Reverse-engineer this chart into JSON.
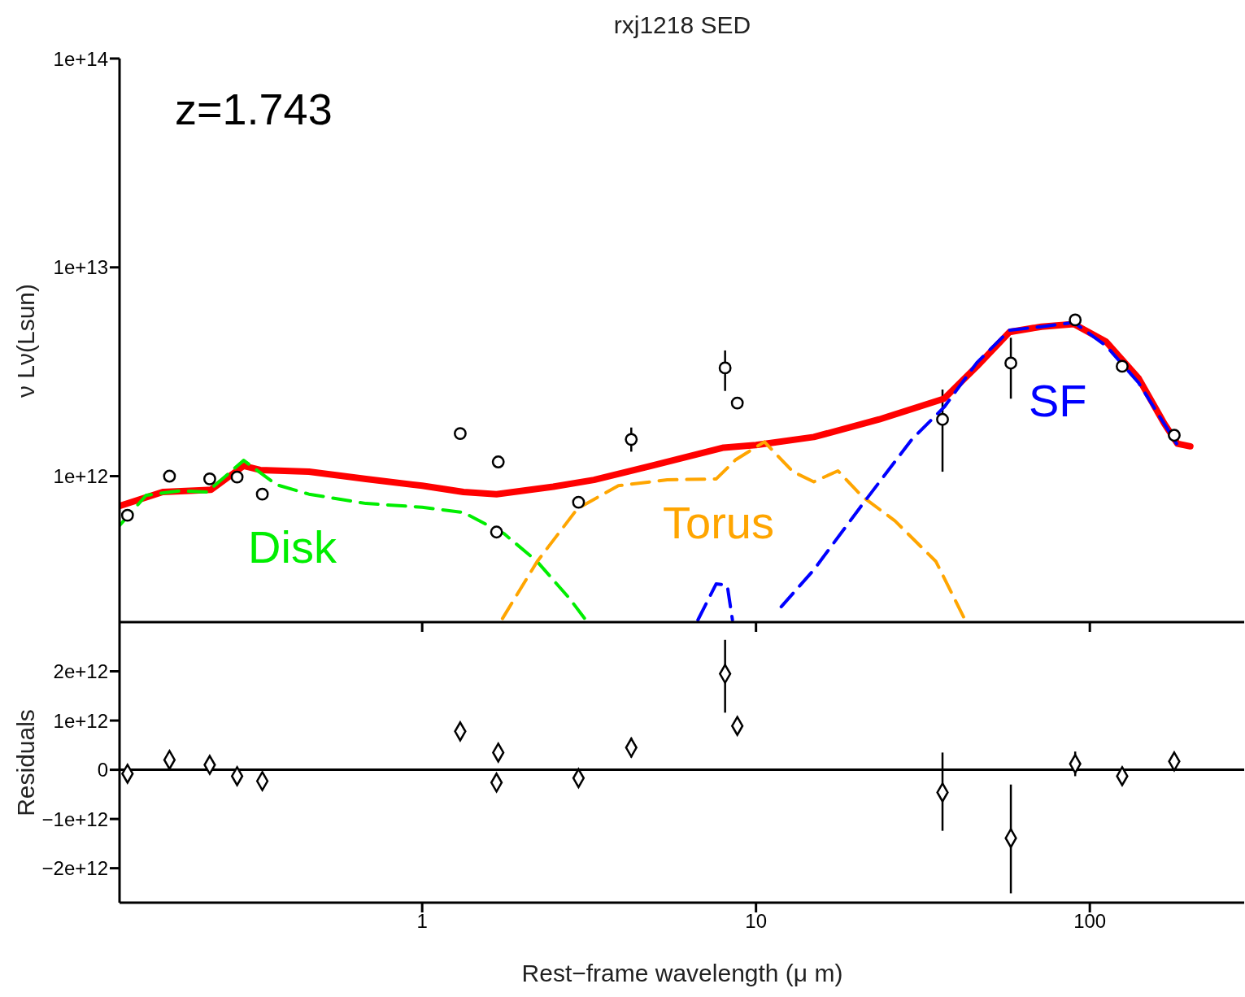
{
  "chart_data": [
    {
      "type": "line",
      "title": "rxj1218 SED",
      "ylabel": "ν Lν(Lsun)",
      "annotations": [
        "z=1.743"
      ],
      "log": "xy",
      "tick_labels": "y",
      "xlim": [
        0.124,
        290
      ],
      "xticks": [
        1,
        10,
        100
      ],
      "ylim": [
        200000000000.0,
        100000000000000.0
      ],
      "yticks": [
        {
          "value": 1000000000000.0,
          "label": "1e+12"
        },
        {
          "value": 10000000000000.0,
          "label": "1e+13"
        },
        {
          "value": 100000000000000.0,
          "label": "1e+14"
        }
      ],
      "series": [
        {
          "type": "scatter",
          "color": "#000000",
          "marker": "circle",
          "x": [
            0.131,
            0.175,
            0.231,
            0.279,
            0.332,
            1.3,
            1.69,
            1.67,
            2.94,
            4.23,
            8.08,
            8.79,
            36.2,
            58,
            90.4,
            125,
            179
          ],
          "values": [
            650000000000.0,
            1000000000000.0,
            970000000000.0,
            990000000000.0,
            820000000000.0,
            1600000000000.0,
            1170000000000.0,
            540000000000.0,
            750000000000.0,
            1500000000000.0,
            3300000000000.0,
            2240000000000.0,
            1870000000000.0,
            3480000000000.0,
            5600000000000.0,
            3360000000000.0,
            1570000000000.0
          ],
          "errors": [
            null,
            null,
            null,
            null,
            null,
            null,
            null,
            null,
            null,
            [
              1310000000000.0,
              1710000000000.0
            ],
            [
              2560000000000.0,
              4000000000000.0
            ],
            null,
            [
              1050000000000.0,
              2600000000000.0
            ],
            [
              2350000000000.0,
              4600000000000.0
            ],
            null,
            null,
            null
          ]
        },
        {
          "color": "#ff0000",
          "line_style": "solid",
          "x": [
            0.124,
            0.167,
            0.233,
            0.292,
            0.327,
            0.458,
            0.679,
            1.0,
            1.33,
            1.67,
            2.47,
            3.27,
            4.85,
            8.0,
            10,
            14.9,
            23.4,
            36.6,
            45.9,
            57.5,
            71.7,
            89.6,
            112,
            140,
            167,
            183,
            200
          ],
          "values": [
            720000000000.0,
            840000000000.0,
            860000000000.0,
            1120000000000.0,
            1070000000000.0,
            1050000000000.0,
            970000000000.0,
            900000000000.0,
            840000000000.0,
            820000000000.0,
            890000000000.0,
            960000000000.0,
            1120000000000.0,
            1370000000000.0,
            1410000000000.0,
            1540000000000.0,
            1870000000000.0,
            2350000000000.0,
            3360000000000.0,
            4900000000000.0,
            5200000000000.0,
            5350000000000.0,
            4400000000000.0,
            2940000000000.0,
            1790000000000.0,
            1430000000000.0,
            1390000000000.0
          ]
        },
        {
          "name": "Disk",
          "color": "#00ee00",
          "line_style": "dashed",
          "x": [
            0.124,
            0.149,
            0.187,
            0.227,
            0.292,
            0.366,
            0.458,
            0.679,
            1.0,
            1.33,
            1.76,
            2.21,
            2.76,
            3.09
          ],
          "values": [
            580000000000.0,
            810000000000.0,
            850000000000.0,
            840000000000.0,
            1190000000000.0,
            910000000000.0,
            820000000000.0,
            740000000000.0,
            710000000000.0,
            670000000000.0,
            530000000000.0,
            390000000000.0,
            260000000000.0,
            205000000000.0
          ]
        },
        {
          "name": "Torus",
          "color": "#ffa500",
          "line_style": "dashed",
          "x": [
            1.74,
            2.21,
            2.92,
            3.87,
            5.42,
            7.6,
            8.7,
            10.6,
            12.9,
            14.9,
            17.6,
            20.8,
            26.1,
            34.6,
            42.1
          ],
          "values": [
            208000000000.0,
            390000000000.0,
            700000000000.0,
            900000000000.0,
            960000000000.0,
            970000000000.0,
            1200000000000.0,
            1460000000000.0,
            1050000000000.0,
            940000000000.0,
            1060000000000.0,
            800000000000.0,
            610000000000.0,
            390000000000.0,
            208000000000.0
          ]
        },
        {
          "name": "SF",
          "color": "#0000ff",
          "line_style": "dashed",
          "x": [
            6.7,
            7.6,
            8.2,
            8.5,
            10,
            11.9,
            14.9,
            20.8,
            29.3,
            36.6,
            45.9,
            57.5,
            71.7,
            89.6,
            112,
            140,
            182
          ],
          "values": [
            205000000000.0,
            305000000000.0,
            300000000000.0,
            205000000000.0,
            null,
            237000000000.0,
            356000000000.0,
            730000000000.0,
            1500000000000.0,
            2140000000000.0,
            3500000000000.0,
            5000000000000.0,
            5200000000000.0,
            5450000000000.0,
            4200000000000.0,
            2800000000000.0,
            1430000000000.0
          ]
        }
      ]
    },
    {
      "type": "scatter",
      "ylabel": "Residuals",
      "xlabel": "Rest−frame wavelength (μ m)",
      "log": "x",
      "xlim": [
        0.124,
        290
      ],
      "xticks": [
        1,
        10,
        100
      ],
      "ylim": [
        -2700000000000.0,
        3000000000000.0
      ],
      "yticks": [
        {
          "value": -2000000000000.0,
          "label": "−2e+12"
        },
        {
          "value": -1000000000000.0,
          "label": "−1e+12"
        },
        0,
        {
          "value": 1000000000000.0,
          "label": "1e+12"
        },
        {
          "value": 2000000000000.0,
          "label": "2e+12"
        }
      ],
      "ref_lines": [
        {
          "axis": "y",
          "value": 0,
          "color": "#000000"
        }
      ],
      "series": [
        {
          "color": "#000000",
          "marker": "diamond",
          "x": [
            0.131,
            0.175,
            0.231,
            0.279,
            0.332,
            1.3,
            1.69,
            1.67,
            2.94,
            4.23,
            8.08,
            8.79,
            36.2,
            58,
            90.4,
            125,
            179
          ],
          "values": [
            -80000000000.0,
            200000000000.0,
            100000000000.0,
            -130000000000.0,
            -230000000000.0,
            780000000000.0,
            350000000000.0,
            -260000000000.0,
            -170000000000.0,
            450000000000.0,
            1950000000000.0,
            890000000000.0,
            -460000000000.0,
            -1390000000000.0,
            120000000000.0,
            -130000000000.0,
            170000000000.0
          ],
          "errors": [
            null,
            null,
            null,
            null,
            null,
            null,
            null,
            null,
            null,
            [
              250000000000.0,
              650000000000.0
            ],
            [
              1160000000000.0,
              2640000000000.0
            ],
            null,
            [
              -1240000000000.0,
              350000000000.0
            ],
            [
              -2510000000000.0,
              -300000000000.0
            ],
            [
              -130000000000.0,
              370000000000.0
            ],
            null,
            null
          ]
        }
      ]
    }
  ]
}
